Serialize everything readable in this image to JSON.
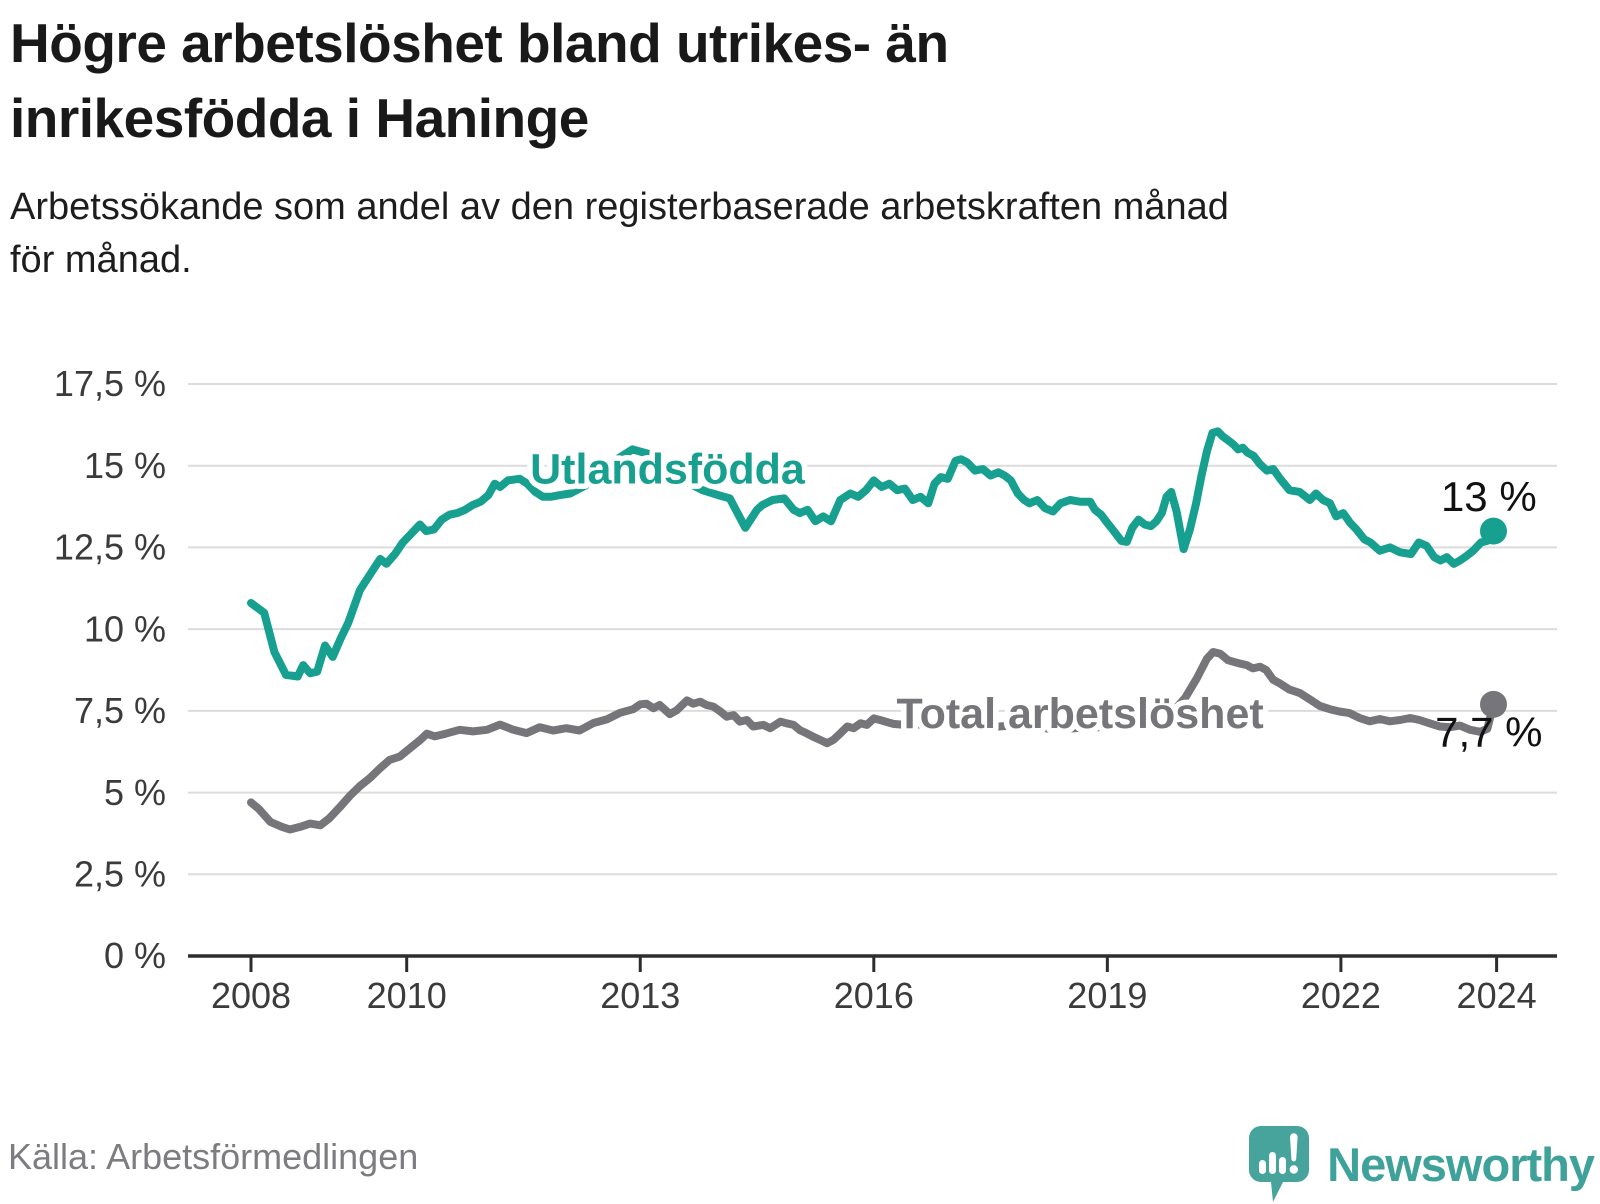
{
  "header": {
    "title": "Högre arbetslöshet bland utrikes- än\ninrikesfödda i Haninge",
    "subtitle": "Arbetssökande som andel av den registerbaserade arbetskraften månad\nför månad."
  },
  "footer": {
    "source": "Källa: Arbetsförmedlingen",
    "brand_name": "Newsworthy",
    "logo_icon": "speech-bubble-bar-chart-icon"
  },
  "colors": {
    "teal_series": "#17a08f",
    "gray_series": "#76767a",
    "gridline": "#dcdcdc",
    "axis": "#2d2d2d",
    "logo_teal": "#46a49c",
    "end_label_text": "#111111"
  },
  "chart_data": {
    "type": "line",
    "title": "Högre arbetslöshet bland utrikes- än inrikesfödda i Haninge",
    "xlabel": "",
    "ylabel": "",
    "x_range": [
      2007.2,
      2024.8
    ],
    "y_range": [
      0,
      17.5
    ],
    "grid": "horizontal",
    "x_ticks": [
      {
        "value": 2008,
        "label": "2008"
      },
      {
        "value": 2010,
        "label": "2010"
      },
      {
        "value": 2013,
        "label": "2013"
      },
      {
        "value": 2016,
        "label": "2016"
      },
      {
        "value": 2019,
        "label": "2019"
      },
      {
        "value": 2022,
        "label": "2022"
      },
      {
        "value": 2024,
        "label": "2024"
      }
    ],
    "y_ticks": [
      {
        "value": 0,
        "label": "0 %"
      },
      {
        "value": 2.5,
        "label": "2,5 %"
      },
      {
        "value": 5,
        "label": "5 %"
      },
      {
        "value": 7.5,
        "label": "7,5 %"
      },
      {
        "value": 10,
        "label": "10 %"
      },
      {
        "value": 12.5,
        "label": "12,5 %"
      },
      {
        "value": 15,
        "label": "15 %"
      },
      {
        "value": 17.5,
        "label": "17,5 %"
      }
    ],
    "series": [
      {
        "name": "Utlandsfödda",
        "color": "#17a08f",
        "end_value_label": "13 %",
        "label_pos": {
          "x": 2013.35,
          "y": 14.9
        },
        "end_label_pos": {
          "x": 2023.9,
          "y": 14.05
        },
        "points": [
          [
            2008.0,
            10.8
          ],
          [
            2008.17,
            10.5
          ],
          [
            2008.3,
            9.3
          ],
          [
            2008.45,
            8.6
          ],
          [
            2008.6,
            8.55
          ],
          [
            2008.67,
            8.9
          ],
          [
            2008.76,
            8.65
          ],
          [
            2008.85,
            8.7
          ],
          [
            2008.95,
            9.5
          ],
          [
            2009.05,
            9.15
          ],
          [
            2009.15,
            9.7
          ],
          [
            2009.25,
            10.2
          ],
          [
            2009.4,
            11.2
          ],
          [
            2009.55,
            11.75
          ],
          [
            2009.66,
            12.15
          ],
          [
            2009.74,
            12.0
          ],
          [
            2009.85,
            12.3
          ],
          [
            2009.95,
            12.65
          ],
          [
            2010.05,
            12.9
          ],
          [
            2010.17,
            13.2
          ],
          [
            2010.25,
            13.0
          ],
          [
            2010.35,
            13.05
          ],
          [
            2010.45,
            13.35
          ],
          [
            2010.55,
            13.5
          ],
          [
            2010.65,
            13.55
          ],
          [
            2010.75,
            13.65
          ],
          [
            2010.85,
            13.8
          ],
          [
            2010.95,
            13.9
          ],
          [
            2011.05,
            14.1
          ],
          [
            2011.13,
            14.45
          ],
          [
            2011.2,
            14.35
          ],
          [
            2011.3,
            14.55
          ],
          [
            2011.45,
            14.6
          ],
          [
            2011.55,
            14.45
          ],
          [
            2011.65,
            14.2
          ],
          [
            2011.75,
            14.05
          ],
          [
            2011.85,
            14.05
          ],
          [
            2011.97,
            14.1
          ],
          [
            2012.1,
            14.15
          ],
          [
            2012.3,
            14.4
          ],
          [
            2012.5,
            14.8
          ],
          [
            2012.7,
            15.2
          ],
          [
            2012.9,
            15.5
          ],
          [
            2013.05,
            15.4
          ],
          [
            2013.2,
            15.3
          ],
          [
            2013.4,
            14.9
          ],
          [
            2013.6,
            14.5
          ],
          [
            2013.8,
            14.25
          ],
          [
            2014.0,
            14.1
          ],
          [
            2014.15,
            14.0
          ],
          [
            2014.35,
            13.1
          ],
          [
            2014.5,
            13.65
          ],
          [
            2014.57,
            13.8
          ],
          [
            2014.7,
            13.95
          ],
          [
            2014.85,
            14.0
          ],
          [
            2014.97,
            13.65
          ],
          [
            2015.05,
            13.55
          ],
          [
            2015.15,
            13.65
          ],
          [
            2015.25,
            13.3
          ],
          [
            2015.35,
            13.45
          ],
          [
            2015.45,
            13.3
          ],
          [
            2015.57,
            13.95
          ],
          [
            2015.7,
            14.15
          ],
          [
            2015.8,
            14.05
          ],
          [
            2015.9,
            14.25
          ],
          [
            2016.0,
            14.55
          ],
          [
            2016.1,
            14.35
          ],
          [
            2016.2,
            14.45
          ],
          [
            2016.3,
            14.25
          ],
          [
            2016.4,
            14.3
          ],
          [
            2016.5,
            13.95
          ],
          [
            2016.6,
            14.05
          ],
          [
            2016.7,
            13.85
          ],
          [
            2016.78,
            14.45
          ],
          [
            2016.86,
            14.65
          ],
          [
            2016.95,
            14.6
          ],
          [
            2017.05,
            15.15
          ],
          [
            2017.12,
            15.2
          ],
          [
            2017.2,
            15.1
          ],
          [
            2017.3,
            14.85
          ],
          [
            2017.4,
            14.9
          ],
          [
            2017.5,
            14.7
          ],
          [
            2017.6,
            14.8
          ],
          [
            2017.68,
            14.7
          ],
          [
            2017.76,
            14.55
          ],
          [
            2017.85,
            14.15
          ],
          [
            2017.93,
            13.95
          ],
          [
            2018.0,
            13.85
          ],
          [
            2018.1,
            13.95
          ],
          [
            2018.2,
            13.7
          ],
          [
            2018.3,
            13.6
          ],
          [
            2018.4,
            13.85
          ],
          [
            2018.52,
            13.95
          ],
          [
            2018.65,
            13.9
          ],
          [
            2018.78,
            13.9
          ],
          [
            2018.84,
            13.65
          ],
          [
            2018.92,
            13.5
          ],
          [
            2019.0,
            13.25
          ],
          [
            2019.1,
            12.95
          ],
          [
            2019.18,
            12.7
          ],
          [
            2019.25,
            12.67
          ],
          [
            2019.32,
            13.1
          ],
          [
            2019.4,
            13.35
          ],
          [
            2019.48,
            13.2
          ],
          [
            2019.56,
            13.15
          ],
          [
            2019.63,
            13.3
          ],
          [
            2019.7,
            13.55
          ],
          [
            2019.76,
            14.05
          ],
          [
            2019.82,
            14.2
          ],
          [
            2019.89,
            13.6
          ],
          [
            2019.98,
            12.45
          ],
          [
            2020.06,
            13.05
          ],
          [
            2020.14,
            13.85
          ],
          [
            2020.21,
            14.7
          ],
          [
            2020.28,
            15.45
          ],
          [
            2020.35,
            16.0
          ],
          [
            2020.42,
            16.05
          ],
          [
            2020.48,
            15.9
          ],
          [
            2020.55,
            15.78
          ],
          [
            2020.62,
            15.65
          ],
          [
            2020.68,
            15.5
          ],
          [
            2020.74,
            15.55
          ],
          [
            2020.8,
            15.4
          ],
          [
            2020.88,
            15.3
          ],
          [
            2020.96,
            15.05
          ],
          [
            2021.05,
            14.85
          ],
          [
            2021.13,
            14.9
          ],
          [
            2021.22,
            14.6
          ],
          [
            2021.34,
            14.25
          ],
          [
            2021.47,
            14.2
          ],
          [
            2021.6,
            13.95
          ],
          [
            2021.68,
            14.15
          ],
          [
            2021.77,
            13.95
          ],
          [
            2021.86,
            13.85
          ],
          [
            2021.94,
            13.45
          ],
          [
            2022.03,
            13.55
          ],
          [
            2022.12,
            13.25
          ],
          [
            2022.2,
            13.05
          ],
          [
            2022.3,
            12.75
          ],
          [
            2022.38,
            12.65
          ],
          [
            2022.5,
            12.4
          ],
          [
            2022.63,
            12.5
          ],
          [
            2022.76,
            12.35
          ],
          [
            2022.9,
            12.3
          ],
          [
            2023.0,
            12.65
          ],
          [
            2023.1,
            12.55
          ],
          [
            2023.2,
            12.2
          ],
          [
            2023.28,
            12.1
          ],
          [
            2023.36,
            12.2
          ],
          [
            2023.45,
            12.0
          ],
          [
            2023.53,
            12.1
          ],
          [
            2023.62,
            12.25
          ],
          [
            2023.7,
            12.4
          ],
          [
            2023.8,
            12.65
          ],
          [
            2023.88,
            12.7
          ],
          [
            2023.96,
            13.0
          ]
        ]
      },
      {
        "name": "Total arbetslöshet",
        "color": "#76767a",
        "end_value_label": "7,7 %",
        "label_pos": {
          "x": 2018.65,
          "y": 7.43
        },
        "end_label_pos": {
          "x": 2023.9,
          "y": 6.85
        },
        "points": [
          [
            2008.0,
            4.7
          ],
          [
            2008.1,
            4.5
          ],
          [
            2008.25,
            4.1
          ],
          [
            2008.4,
            3.95
          ],
          [
            2008.5,
            3.87
          ],
          [
            2008.63,
            3.95
          ],
          [
            2008.76,
            4.05
          ],
          [
            2008.89,
            4.0
          ],
          [
            2009.0,
            4.2
          ],
          [
            2009.14,
            4.55
          ],
          [
            2009.27,
            4.9
          ],
          [
            2009.4,
            5.2
          ],
          [
            2009.53,
            5.45
          ],
          [
            2009.66,
            5.75
          ],
          [
            2009.78,
            6.0
          ],
          [
            2009.91,
            6.1
          ],
          [
            2010.04,
            6.35
          ],
          [
            2010.17,
            6.6
          ],
          [
            2010.26,
            6.8
          ],
          [
            2010.36,
            6.72
          ],
          [
            2010.5,
            6.8
          ],
          [
            2010.68,
            6.92
          ],
          [
            2010.85,
            6.87
          ],
          [
            2011.03,
            6.92
          ],
          [
            2011.2,
            7.08
          ],
          [
            2011.37,
            6.92
          ],
          [
            2011.54,
            6.82
          ],
          [
            2011.71,
            7.0
          ],
          [
            2011.88,
            6.9
          ],
          [
            2012.05,
            6.97
          ],
          [
            2012.22,
            6.9
          ],
          [
            2012.4,
            7.13
          ],
          [
            2012.57,
            7.24
          ],
          [
            2012.74,
            7.44
          ],
          [
            2012.91,
            7.55
          ],
          [
            2013.0,
            7.7
          ],
          [
            2013.08,
            7.72
          ],
          [
            2013.17,
            7.58
          ],
          [
            2013.25,
            7.68
          ],
          [
            2013.38,
            7.4
          ],
          [
            2013.47,
            7.52
          ],
          [
            2013.6,
            7.82
          ],
          [
            2013.68,
            7.72
          ],
          [
            2013.77,
            7.78
          ],
          [
            2013.85,
            7.68
          ],
          [
            2013.94,
            7.63
          ],
          [
            2014.03,
            7.48
          ],
          [
            2014.11,
            7.32
          ],
          [
            2014.2,
            7.37
          ],
          [
            2014.28,
            7.17
          ],
          [
            2014.37,
            7.22
          ],
          [
            2014.45,
            7.02
          ],
          [
            2014.58,
            7.07
          ],
          [
            2014.67,
            6.97
          ],
          [
            2014.8,
            7.17
          ],
          [
            2014.88,
            7.12
          ],
          [
            2014.97,
            7.07
          ],
          [
            2015.05,
            6.91
          ],
          [
            2015.14,
            6.81
          ],
          [
            2015.22,
            6.71
          ],
          [
            2015.31,
            6.61
          ],
          [
            2015.4,
            6.51
          ],
          [
            2015.48,
            6.61
          ],
          [
            2015.57,
            6.81
          ],
          [
            2015.66,
            7.02
          ],
          [
            2015.74,
            6.97
          ],
          [
            2015.83,
            7.12
          ],
          [
            2015.91,
            7.07
          ],
          [
            2016.0,
            7.27
          ],
          [
            2016.08,
            7.22
          ],
          [
            2016.25,
            7.1
          ],
          [
            2016.5,
            7.05
          ],
          [
            2016.75,
            7.15
          ],
          [
            2017.0,
            7.2
          ],
          [
            2017.25,
            7.1
          ],
          [
            2017.5,
            7.0
          ],
          [
            2017.75,
            7.05
          ],
          [
            2018.0,
            7.05
          ],
          [
            2018.25,
            6.95
          ],
          [
            2018.5,
            6.95
          ],
          [
            2018.75,
            7.0
          ],
          [
            2019.0,
            7.0
          ],
          [
            2019.25,
            7.05
          ],
          [
            2019.5,
            7.1
          ],
          [
            2019.68,
            7.2
          ],
          [
            2019.85,
            7.5
          ],
          [
            2020.0,
            7.9
          ],
          [
            2020.15,
            8.5
          ],
          [
            2020.28,
            9.1
          ],
          [
            2020.36,
            9.3
          ],
          [
            2020.45,
            9.25
          ],
          [
            2020.55,
            9.05
          ],
          [
            2020.62,
            9.0
          ],
          [
            2020.7,
            8.95
          ],
          [
            2020.79,
            8.9
          ],
          [
            2020.87,
            8.8
          ],
          [
            2020.96,
            8.85
          ],
          [
            2021.04,
            8.75
          ],
          [
            2021.13,
            8.45
          ],
          [
            2021.21,
            8.35
          ],
          [
            2021.34,
            8.15
          ],
          [
            2021.47,
            8.05
          ],
          [
            2021.6,
            7.85
          ],
          [
            2021.73,
            7.65
          ],
          [
            2021.86,
            7.55
          ],
          [
            2021.98,
            7.48
          ],
          [
            2022.11,
            7.43
          ],
          [
            2022.24,
            7.28
          ],
          [
            2022.37,
            7.18
          ],
          [
            2022.5,
            7.25
          ],
          [
            2022.63,
            7.18
          ],
          [
            2022.76,
            7.22
          ],
          [
            2022.89,
            7.28
          ],
          [
            2023.01,
            7.22
          ],
          [
            2023.14,
            7.12
          ],
          [
            2023.27,
            7.02
          ],
          [
            2023.4,
            7.0
          ],
          [
            2023.53,
            7.05
          ],
          [
            2023.66,
            6.92
          ],
          [
            2023.79,
            6.86
          ],
          [
            2023.88,
            6.95
          ],
          [
            2023.96,
            7.7
          ]
        ]
      }
    ]
  }
}
